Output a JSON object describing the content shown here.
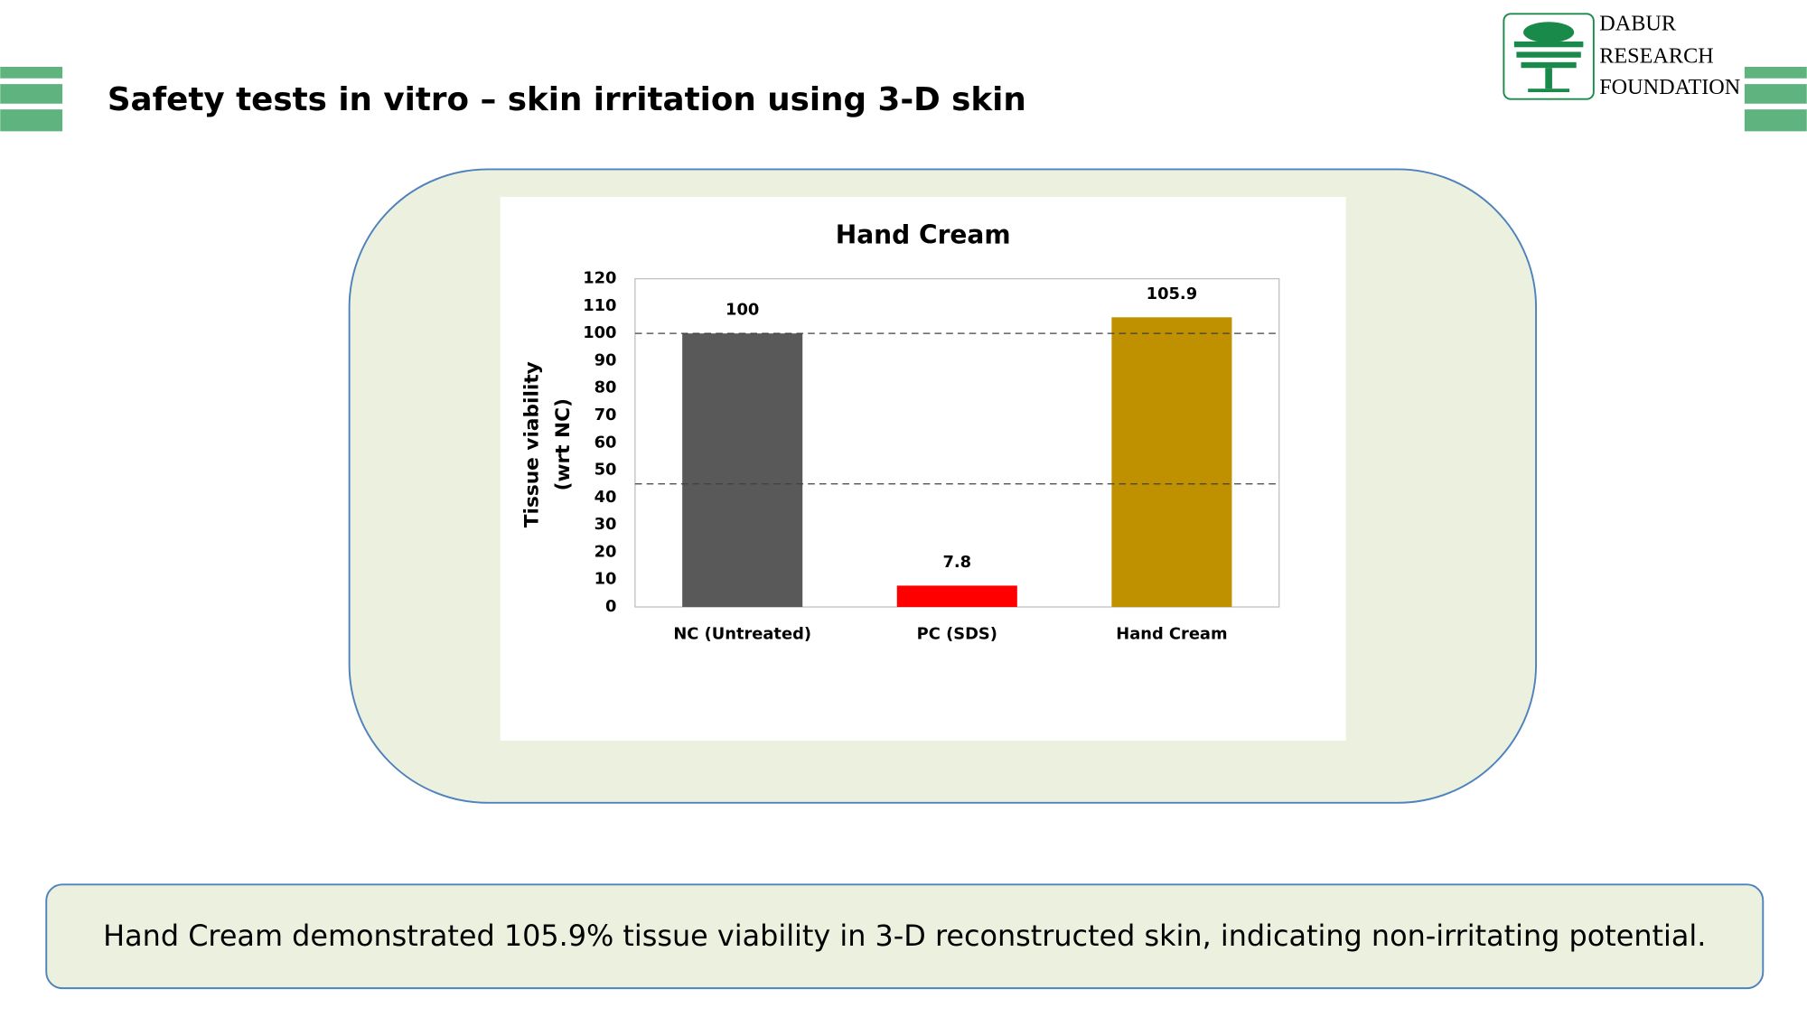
{
  "header": {
    "title": "Safety tests in vitro – skin irritation using 3-D skin"
  },
  "logo": {
    "lines": [
      "DABUR",
      "RESEARCH",
      "FOUNDATION"
    ]
  },
  "chart_data": {
    "type": "bar",
    "title": "Hand Cream",
    "ylabel": [
      "Tissue viability",
      "(wrt NC)"
    ],
    "categories": [
      "NC (Untreated)",
      "PC (SDS)",
      "Hand Cream"
    ],
    "values": [
      100,
      7.8,
      105.9
    ],
    "colors": [
      "#595959",
      "#ff0000",
      "#bf9000"
    ],
    "ylim": [
      0,
      120
    ],
    "yticks": [
      0,
      10,
      20,
      30,
      40,
      50,
      60,
      70,
      80,
      90,
      100,
      110,
      120
    ],
    "reference_lines": [
      100,
      45
    ],
    "grid": false
  },
  "summary": "Hand Cream demonstrated 105.9% tissue viability in 3-D reconstructed skin, indicating non-irritating potential."
}
